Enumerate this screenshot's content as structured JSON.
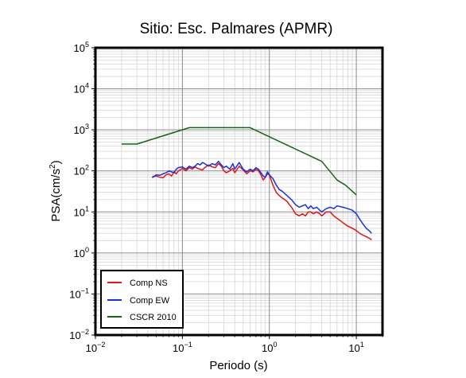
{
  "chart_data": {
    "type": "line",
    "title": "Sitio: Esc. Palmares (APMR)",
    "xlabel": "Periodo (s)",
    "ylabel_base": "PSA(cm/s",
    "ylabel_sup": "2",
    "ylabel_close": ")",
    "x_scale": "log",
    "y_scale": "log",
    "xlim": [
      0.01,
      20
    ],
    "ylim": [
      0.01,
      100000
    ],
    "grid": true,
    "legend_position": "bottom-left",
    "x_ticks": [
      {
        "value": 0.01,
        "base": "10",
        "exp": "-2"
      },
      {
        "value": 0.1,
        "base": "10",
        "exp": "-1"
      },
      {
        "value": 1,
        "base": "10",
        "exp": "0"
      },
      {
        "value": 10,
        "base": "10",
        "exp": "1"
      }
    ],
    "y_ticks": [
      {
        "value": 0.01,
        "base": "10",
        "exp": "-2"
      },
      {
        "value": 0.1,
        "base": "10",
        "exp": "-1"
      },
      {
        "value": 1,
        "base": "10",
        "exp": "0"
      },
      {
        "value": 10,
        "base": "10",
        "exp": "1"
      },
      {
        "value": 100,
        "base": "10",
        "exp": "2"
      },
      {
        "value": 1000,
        "base": "10",
        "exp": "3"
      },
      {
        "value": 10000,
        "base": "10",
        "exp": "4"
      },
      {
        "value": 100000,
        "base": "10",
        "exp": "5"
      }
    ],
    "series": [
      {
        "name": "Comp NS",
        "color": "#ee1111",
        "x": [
          0.045,
          0.05,
          0.055,
          0.06,
          0.065,
          0.07,
          0.075,
          0.08,
          0.085,
          0.09,
          0.1,
          0.11,
          0.12,
          0.13,
          0.14,
          0.15,
          0.16,
          0.17,
          0.18,
          0.2,
          0.22,
          0.24,
          0.26,
          0.28,
          0.3,
          0.32,
          0.35,
          0.38,
          0.4,
          0.45,
          0.5,
          0.55,
          0.6,
          0.65,
          0.7,
          0.75,
          0.8,
          0.85,
          0.9,
          0.95,
          1.0,
          1.1,
          1.2,
          1.3,
          1.4,
          1.5,
          1.6,
          1.7,
          1.8,
          2.0,
          2.2,
          2.4,
          2.6,
          2.8,
          3.0,
          3.2,
          3.5,
          3.8,
          4.0,
          4.5,
          5.0,
          5.5,
          6.0,
          7.0,
          8.0,
          9.0,
          10.0,
          11.0,
          12.0,
          13.0,
          14.0,
          15.0
        ],
        "y": [
          72,
          75,
          70,
          68,
          80,
          85,
          75,
          95,
          85,
          100,
          115,
          100,
          120,
          110,
          125,
          115,
          110,
          105,
          120,
          140,
          125,
          120,
          150,
          130,
          100,
          90,
          100,
          115,
          90,
          130,
          105,
          85,
          100,
          95,
          110,
          100,
          80,
          60,
          70,
          85,
          80,
          45,
          30,
          25,
          22,
          20,
          18,
          15,
          13,
          9,
          8,
          9,
          8,
          10,
          10,
          9,
          10,
          9,
          8,
          10,
          10,
          8,
          7,
          5.5,
          4.5,
          4,
          3.5,
          3,
          2.7,
          2.5,
          2.3,
          2.1
        ]
      },
      {
        "name": "Comp EW",
        "color": "#1133ee",
        "x": [
          0.045,
          0.05,
          0.055,
          0.06,
          0.065,
          0.07,
          0.075,
          0.08,
          0.085,
          0.09,
          0.1,
          0.11,
          0.12,
          0.13,
          0.14,
          0.15,
          0.16,
          0.17,
          0.18,
          0.2,
          0.22,
          0.24,
          0.26,
          0.28,
          0.3,
          0.32,
          0.35,
          0.38,
          0.4,
          0.45,
          0.5,
          0.55,
          0.6,
          0.65,
          0.7,
          0.75,
          0.8,
          0.85,
          0.9,
          0.95,
          1.0,
          1.1,
          1.2,
          1.3,
          1.4,
          1.5,
          1.6,
          1.7,
          1.8,
          2.0,
          2.2,
          2.4,
          2.6,
          2.8,
          3.0,
          3.2,
          3.5,
          3.8,
          4.0,
          4.5,
          5.0,
          5.5,
          6.0,
          7.0,
          8.0,
          9.0,
          10.0,
          11.0,
          12.0,
          13.0,
          14.0,
          15.0
        ],
        "y": [
          68,
          80,
          78,
          85,
          90,
          100,
          95,
          90,
          110,
          120,
          125,
          110,
          130,
          120,
          130,
          150,
          140,
          160,
          150,
          130,
          150,
          140,
          170,
          140,
          120,
          130,
          110,
          150,
          110,
          160,
          110,
          95,
          110,
          100,
          120,
          110,
          90,
          75,
          70,
          95,
          80,
          65,
          45,
          35,
          32,
          28,
          25,
          22,
          20,
          15,
          13,
          14,
          15,
          12,
          14,
          12,
          13,
          11,
          10,
          12,
          13,
          12,
          14,
          13,
          12,
          11,
          9,
          6.5,
          5,
          4,
          3.5,
          3
        ]
      },
      {
        "name": "CSCR 2010",
        "color": "#116611",
        "x": [
          0.02,
          0.03,
          0.12,
          0.6,
          4.0,
          6.0,
          7.5,
          10.0
        ],
        "y": [
          450,
          450,
          1130,
          1130,
          170,
          60,
          45,
          26
        ]
      }
    ]
  }
}
